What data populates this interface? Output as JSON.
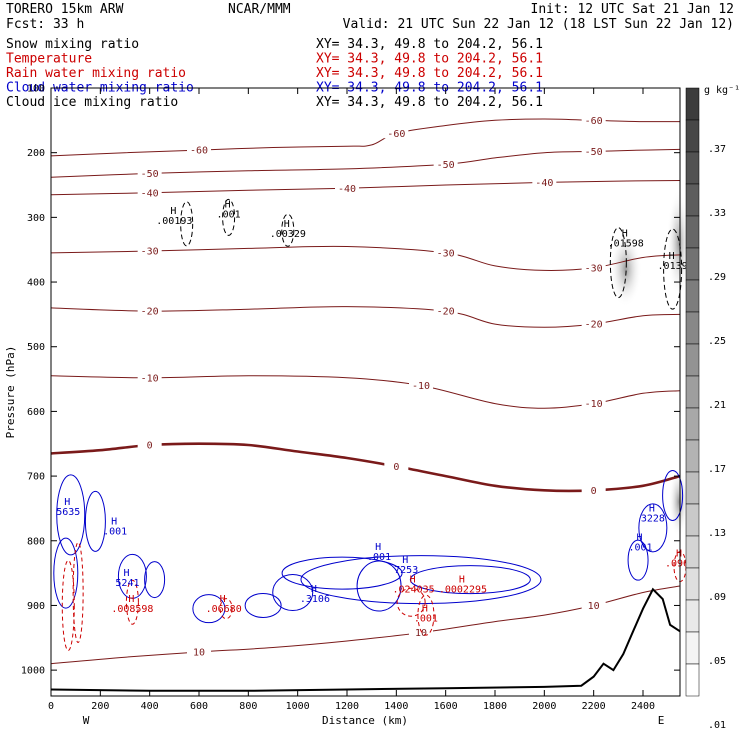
{
  "header": {
    "model": "TORERO  15km ARW",
    "org": "NCAR/MMM",
    "init": "Init: 12 UTC Sat 21 Jan 12",
    "fcst": "Fcst:    33 h",
    "valid": "Valid: 21 UTC Sun 22 Jan 12 (18 LST Sun 22 Jan 12)"
  },
  "fields": [
    {
      "name": "Snow mixing ratio",
      "xy": "XY=  34.3, 49.8 to 204.2, 56.1",
      "color": "#000000"
    },
    {
      "name": "Temperature",
      "xy": "XY=  34.3, 49.8 to 204.2, 56.1",
      "color": "#cc0000"
    },
    {
      "name": "Rain water mixing ratio",
      "xy": "XY=  34.3, 49.8 to 204.2, 56.1",
      "color": "#cc0000"
    },
    {
      "name": "Cloud water mixing ratio",
      "xy": "XY=  34.3, 49.8 to 204.2, 56.1",
      "color": "#0000cc"
    },
    {
      "name": "Cloud ice mixing ratio",
      "xy": "XY=  34.3, 49.8 to 204.2, 56.1",
      "color": "#000000"
    }
  ],
  "colorbar": {
    "unit": "g kg⁻¹",
    "labels": [
      ".37",
      ".33",
      ".29",
      ".25",
      ".21",
      ".17",
      ".13",
      ".09",
      ".05",
      ".01"
    ]
  },
  "chart_data": {
    "type": "contour",
    "xlabel": "Distance (km)",
    "ylabel": "Pressure (hPa)",
    "xlim": [
      0,
      2550
    ],
    "ylim": [
      1040,
      100
    ],
    "x_ticks": [
      0,
      200,
      400,
      600,
      800,
      1000,
      1200,
      1400,
      1600,
      1800,
      2000,
      2200,
      2400
    ],
    "y_ticks": [
      100,
      200,
      300,
      400,
      500,
      600,
      700,
      800,
      900,
      1000
    ],
    "end_labels": {
      "left": "W",
      "right": "E"
    },
    "temperature_contours": [
      {
        "value": -60,
        "points": [
          [
            0,
            205
          ],
          [
            300,
            200
          ],
          [
            600,
            196
          ],
          [
            900,
            192
          ],
          [
            1200,
            190
          ],
          [
            1300,
            188
          ],
          [
            1400,
            170
          ],
          [
            1600,
            158
          ],
          [
            1800,
            150
          ],
          [
            2000,
            148
          ],
          [
            2200,
            150
          ],
          [
            2400,
            152
          ],
          [
            2550,
            152
          ]
        ]
      },
      {
        "value": -50,
        "points": [
          [
            0,
            238
          ],
          [
            400,
            232
          ],
          [
            800,
            228
          ],
          [
            1200,
            225
          ],
          [
            1600,
            218
          ],
          [
            1800,
            208
          ],
          [
            2000,
            200
          ],
          [
            2200,
            198
          ],
          [
            2400,
            196
          ],
          [
            2550,
            195
          ]
        ]
      },
      {
        "value": -40,
        "points": [
          [
            0,
            265
          ],
          [
            400,
            262
          ],
          [
            800,
            258
          ],
          [
            1200,
            255
          ],
          [
            1600,
            250
          ],
          [
            2000,
            246
          ],
          [
            2300,
            244
          ],
          [
            2550,
            243
          ]
        ]
      },
      {
        "value": -30,
        "points": [
          [
            0,
            355
          ],
          [
            400,
            352
          ],
          [
            800,
            348
          ],
          [
            1200,
            345
          ],
          [
            1600,
            355
          ],
          [
            1800,
            375
          ],
          [
            2000,
            382
          ],
          [
            2200,
            378
          ],
          [
            2400,
            362
          ],
          [
            2550,
            358
          ]
        ]
      },
      {
        "value": -20,
        "points": [
          [
            0,
            440
          ],
          [
            400,
            445
          ],
          [
            800,
            442
          ],
          [
            1200,
            438
          ],
          [
            1600,
            445
          ],
          [
            1800,
            465
          ],
          [
            2000,
            470
          ],
          [
            2200,
            465
          ],
          [
            2400,
            452
          ],
          [
            2550,
            450
          ]
        ]
      },
      {
        "value": -10,
        "points": [
          [
            0,
            545
          ],
          [
            400,
            548
          ],
          [
            800,
            545
          ],
          [
            1200,
            548
          ],
          [
            1500,
            560
          ],
          [
            1800,
            588
          ],
          [
            2000,
            595
          ],
          [
            2200,
            588
          ],
          [
            2400,
            572
          ],
          [
            2550,
            568
          ]
        ]
      },
      {
        "value": 0,
        "points": [
          [
            0,
            665
          ],
          [
            200,
            660
          ],
          [
            400,
            652
          ],
          [
            600,
            650
          ],
          [
            800,
            652
          ],
          [
            1000,
            662
          ],
          [
            1200,
            672
          ],
          [
            1400,
            685
          ],
          [
            1600,
            700
          ],
          [
            1800,
            715
          ],
          [
            2000,
            722
          ],
          [
            2200,
            722
          ],
          [
            2400,
            715
          ],
          [
            2550,
            700
          ]
        ]
      },
      {
        "value": 10,
        "points": [
          [
            0,
            990
          ],
          [
            300,
            980
          ],
          [
            600,
            972
          ],
          [
            900,
            965
          ],
          [
            1200,
            955
          ],
          [
            1500,
            942
          ],
          [
            1800,
            925
          ],
          [
            2000,
            915
          ],
          [
            2200,
            900
          ],
          [
            2400,
            880
          ],
          [
            2550,
            870
          ]
        ]
      }
    ],
    "maxima_labels": [
      {
        "x": 500,
        "p": 310,
        "text": ".00193",
        "color": "#000000"
      },
      {
        "x": 720,
        "p": 300,
        "text": ".001",
        "color": "#000000"
      },
      {
        "x": 960,
        "p": 330,
        "text": ".00329",
        "color": "#000000"
      },
      {
        "x": 2330,
        "p": 345,
        "text": ".01598",
        "color": "#000000"
      },
      {
        "x": 2520,
        "p": 380,
        "text": ".0139",
        "color": "#000000"
      },
      {
        "x": 70,
        "p": 760,
        "text": "5635",
        "color": "#0000cc"
      },
      {
        "x": 260,
        "p": 790,
        "text": ".001",
        "color": "#0000cc"
      },
      {
        "x": 310,
        "p": 870,
        "text": "5241",
        "color": "#0000cc"
      },
      {
        "x": 1070,
        "p": 895,
        "text": ".3106",
        "color": "#0000cc"
      },
      {
        "x": 1440,
        "p": 850,
        "text": "7253",
        "color": "#0000cc"
      },
      {
        "x": 1330,
        "p": 830,
        "text": ".001",
        "color": "#0000cc"
      },
      {
        "x": 2440,
        "p": 770,
        "text": "3228",
        "color": "#0000cc"
      },
      {
        "x": 2390,
        "p": 815,
        "text": ".001",
        "color": "#0000cc"
      },
      {
        "x": 330,
        "p": 910,
        "text": ".008598",
        "color": "#cc0000"
      },
      {
        "x": 700,
        "p": 910,
        "text": ".06680",
        "color": "#cc0000"
      },
      {
        "x": 1470,
        "p": 880,
        "text": ".024035",
        "color": "#cc0000"
      },
      {
        "x": 1670,
        "p": 880,
        "text": ".0002295",
        "color": "#cc0000"
      },
      {
        "x": 1520,
        "p": 925,
        "text": ".001",
        "color": "#cc0000"
      },
      {
        "x": 2550,
        "p": 840,
        "text": ".0960",
        "color": "#cc0000"
      }
    ],
    "terrain": [
      [
        0,
        1030
      ],
      [
        400,
        1032
      ],
      [
        800,
        1032
      ],
      [
        1200,
        1030
      ],
      [
        1600,
        1028
      ],
      [
        2000,
        1026
      ],
      [
        2150,
        1024
      ],
      [
        2200,
        1010
      ],
      [
        2240,
        990
      ],
      [
        2280,
        1000
      ],
      [
        2320,
        975
      ],
      [
        2360,
        940
      ],
      [
        2400,
        905
      ],
      [
        2440,
        875
      ],
      [
        2480,
        890
      ],
      [
        2510,
        930
      ],
      [
        2550,
        940
      ]
    ]
  }
}
